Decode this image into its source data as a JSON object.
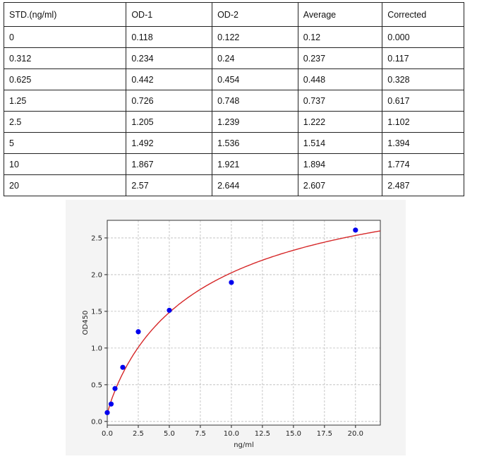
{
  "table": {
    "headers": [
      "STD.(ng/ml)",
      "OD-1",
      "OD-2",
      "Average",
      "Corrected"
    ],
    "rows": [
      [
        "0",
        "0.118",
        "0.122",
        "0.12",
        "0.000"
      ],
      [
        "0.312",
        "0.234",
        "0.24",
        "0.237",
        "0.117"
      ],
      [
        "0.625",
        "0.442",
        "0.454",
        "0.448",
        "0.328"
      ],
      [
        "1.25",
        "0.726",
        "0.748",
        "0.737",
        "0.617"
      ],
      [
        "2.5",
        "1.205",
        "1.239",
        "1.222",
        "1.102"
      ],
      [
        "5",
        "1.492",
        "1.536",
        "1.514",
        "1.394"
      ],
      [
        "10",
        "1.867",
        "1.921",
        "1.894",
        "1.774"
      ],
      [
        "20",
        "2.57",
        "2.644",
        "2.607",
        "2.487"
      ]
    ]
  },
  "chart_data": {
    "type": "scatter",
    "xlabel": "ng/ml",
    "ylabel": "OD450",
    "xlim": [
      0,
      22
    ],
    "ylim": [
      -0.05,
      2.74
    ],
    "xticks": [
      "0.0",
      "2.5",
      "5.0",
      "7.5",
      "10.0",
      "12.5",
      "15.0",
      "17.5",
      "20.0"
    ],
    "yticks": [
      "0.0",
      "0.5",
      "1.0",
      "1.5",
      "2.0",
      "2.5"
    ],
    "grid": true,
    "points": {
      "x": [
        0,
        0.312,
        0.625,
        1.25,
        2.5,
        5,
        10,
        20
      ],
      "y": [
        0.12,
        0.237,
        0.448,
        0.737,
        1.222,
        1.514,
        1.894,
        2.607
      ]
    },
    "point_color": "#0000ee",
    "curve_color": "#d62728",
    "curve": "fitted standard curve"
  }
}
